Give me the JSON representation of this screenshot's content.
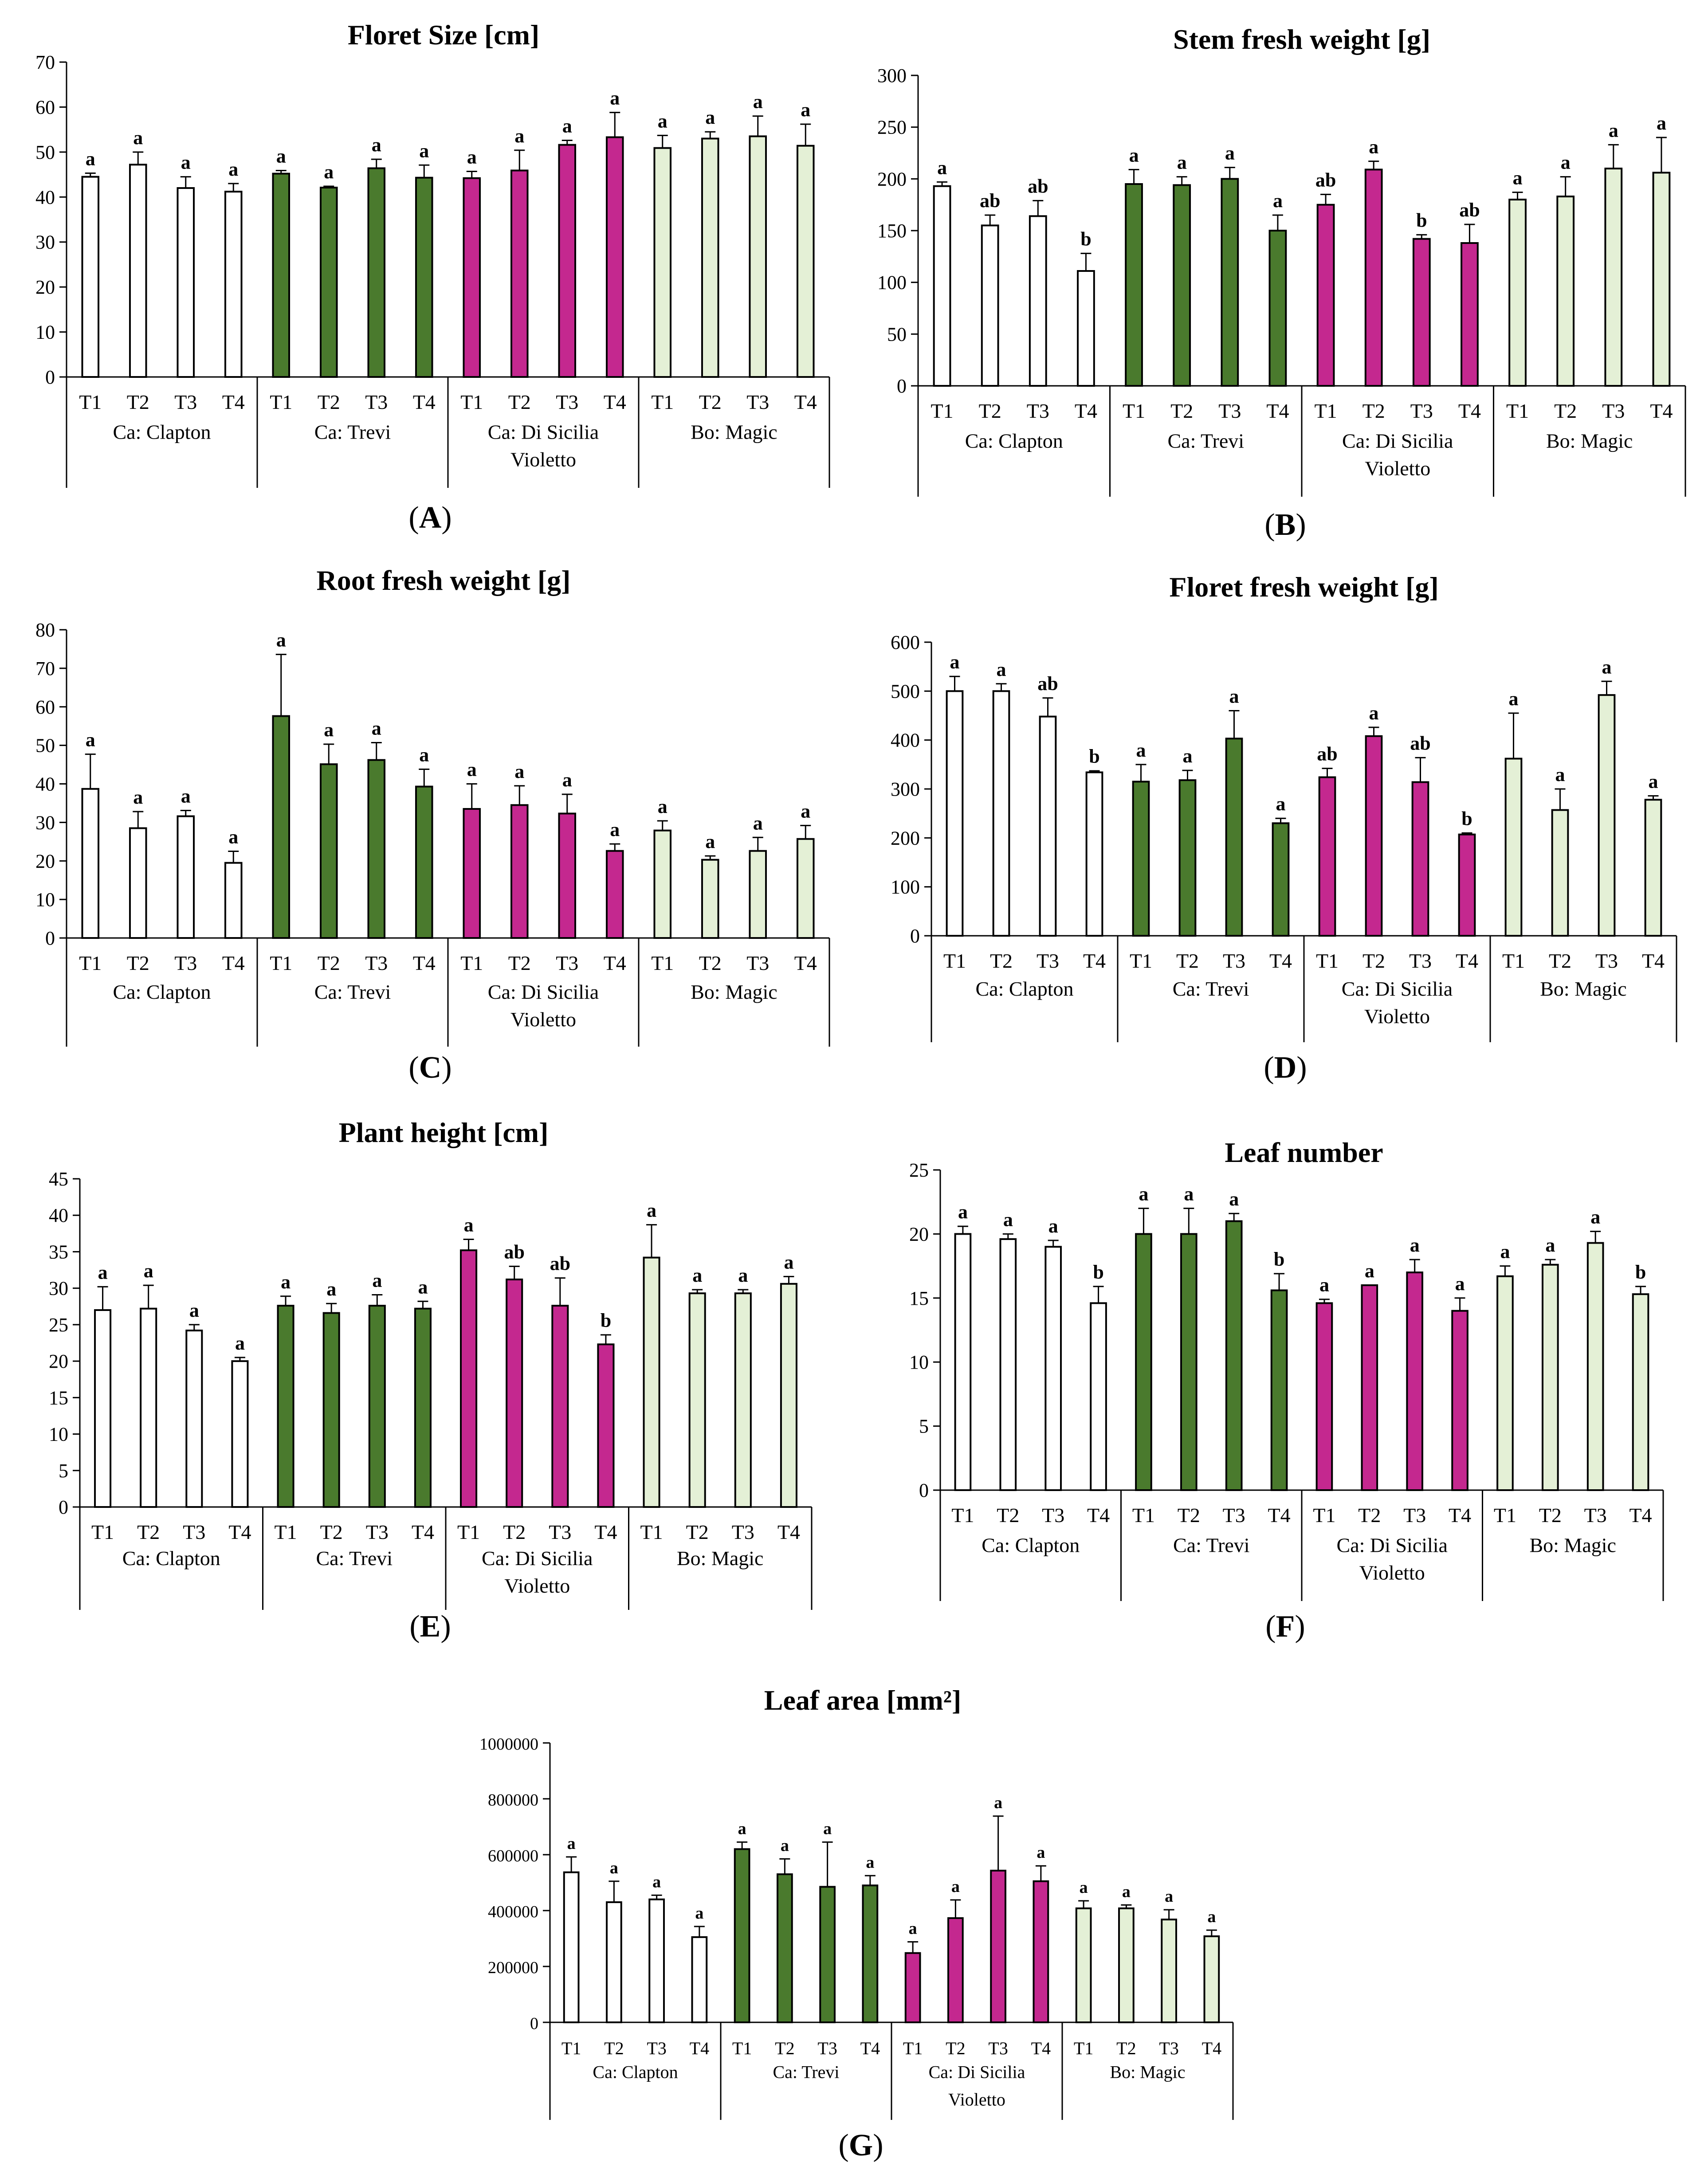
{
  "colors": {
    "Ca: Clapton": "#ffffff",
    "Ca: Trevi": "#4a7a2d",
    "Ca: Di Sicilia Violetto": "#c4288f",
    "Bo: Magic": "#e4f0d6"
  },
  "chart_data": [
    {
      "type": "bar",
      "panel": "A",
      "title": "Floret Size [cm]",
      "ylim": [
        0,
        70
      ],
      "yticks": [
        "0",
        "10",
        "20",
        "30",
        "40",
        "50",
        "60",
        "70"
      ],
      "treatments": [
        "T1",
        "T2",
        "T3",
        "T4"
      ],
      "groups": [
        {
          "name": "Ca: Clapton",
          "lines": [
            "Ca: Clapton"
          ],
          "values": [
            44.5,
            47.2,
            42.0,
            41.2
          ],
          "errors": [
            0.8,
            2.8,
            2.5,
            1.8
          ],
          "letters": [
            "a",
            "a",
            "a",
            "a"
          ]
        },
        {
          "name": "Ca: Trevi",
          "lines": [
            "Ca: Trevi"
          ],
          "values": [
            45.2,
            42.1,
            46.4,
            44.3
          ],
          "errors": [
            0.7,
            0.3,
            2.0,
            2.8
          ],
          "letters": [
            "a",
            "a",
            "a",
            "a"
          ]
        },
        {
          "name": "Ca: Di Sicilia Violetto",
          "lines": [
            "Ca: Di Sicilia",
            "Violetto"
          ],
          "values": [
            44.2,
            45.9,
            51.6,
            53.3
          ],
          "errors": [
            1.5,
            4.5,
            1.0,
            5.5
          ],
          "letters": [
            "a",
            "a",
            "a",
            "a"
          ]
        },
        {
          "name": "Bo: Magic",
          "lines": [
            "Bo: Magic"
          ],
          "values": [
            50.9,
            53.0,
            53.5,
            51.4
          ],
          "errors": [
            2.8,
            1.5,
            4.5,
            4.8
          ],
          "letters": [
            "a",
            "a",
            "a",
            "a"
          ]
        }
      ]
    },
    {
      "type": "bar",
      "panel": "B",
      "title": "Stem fresh weight [g]",
      "ylim": [
        0,
        300
      ],
      "yticks": [
        "0",
        "50",
        "100",
        "150",
        "200",
        "250",
        "300"
      ],
      "treatments": [
        "T1",
        "T2",
        "T3",
        "T4"
      ],
      "groups": [
        {
          "name": "Ca: Clapton",
          "lines": [
            "Ca: Clapton"
          ],
          "values": [
            193,
            155,
            164,
            111
          ],
          "errors": [
            4,
            10,
            15,
            17
          ],
          "letters": [
            "a",
            "ab",
            "ab",
            "b"
          ]
        },
        {
          "name": "Ca: Trevi",
          "lines": [
            "Ca: Trevi"
          ],
          "values": [
            195,
            194,
            200,
            150
          ],
          "errors": [
            14,
            8,
            11,
            15
          ],
          "letters": [
            "a",
            "a",
            "a",
            "a"
          ]
        },
        {
          "name": "Ca: Di Sicilia Violetto",
          "lines": [
            "Ca: Di Sicilia",
            "Violetto"
          ],
          "values": [
            175,
            209,
            142,
            138
          ],
          "errors": [
            10,
            8,
            4,
            18
          ],
          "letters": [
            "ab",
            "a",
            "b",
            "ab"
          ]
        },
        {
          "name": "Bo: Magic",
          "lines": [
            "Bo: Magic"
          ],
          "values": [
            180,
            183,
            210,
            206
          ],
          "errors": [
            7,
            19,
            23,
            34
          ],
          "letters": [
            "a",
            "a",
            "a",
            "a"
          ]
        }
      ]
    },
    {
      "type": "bar",
      "panel": "C",
      "title": "Root fresh weight [g]",
      "ylim": [
        0,
        80
      ],
      "yticks": [
        "0",
        "10",
        "20",
        "30",
        "40",
        "50",
        "60",
        "70",
        "80"
      ],
      "treatments": [
        "T1",
        "T2",
        "T3",
        "T4"
      ],
      "groups": [
        {
          "name": "Ca: Clapton",
          "lines": [
            "Ca: Clapton"
          ],
          "values": [
            38.7,
            28.5,
            31.6,
            19.5
          ],
          "errors": [
            9.0,
            4.3,
            1.5,
            3.0
          ],
          "letters": [
            "a",
            "a",
            "a",
            "a"
          ]
        },
        {
          "name": "Ca: Trevi",
          "lines": [
            "Ca: Trevi"
          ],
          "values": [
            57.6,
            45.1,
            46.2,
            39.3
          ],
          "errors": [
            16.0,
            5.2,
            4.5,
            4.5
          ],
          "letters": [
            "a",
            "a",
            "a",
            "a"
          ]
        },
        {
          "name": "Ca: Di Sicilia Violetto",
          "lines": [
            "Ca: Di Sicilia",
            "Violetto"
          ],
          "values": [
            33.5,
            34.5,
            32.3,
            22.6
          ],
          "errors": [
            6.5,
            5.0,
            5.0,
            1.8
          ],
          "letters": [
            "a",
            "a",
            "a",
            "a"
          ]
        },
        {
          "name": "Bo: Magic",
          "lines": [
            "Bo: Magic"
          ],
          "values": [
            27.9,
            20.3,
            22.6,
            25.7
          ],
          "errors": [
            2.5,
            1.0,
            3.5,
            3.5
          ],
          "letters": [
            "a",
            "a",
            "a",
            "a"
          ]
        }
      ]
    },
    {
      "type": "bar",
      "panel": "D",
      "title": "Floret fresh weight [g]",
      "ylim": [
        0,
        600
      ],
      "yticks": [
        "0",
        "100",
        "200",
        "300",
        "400",
        "500",
        "600"
      ],
      "treatments": [
        "T1",
        "T2",
        "T3",
        "T4"
      ],
      "groups": [
        {
          "name": "Ca: Clapton",
          "lines": [
            "Ca: Clapton"
          ],
          "values": [
            500,
            500,
            448,
            334
          ],
          "errors": [
            30,
            15,
            38,
            3
          ],
          "letters": [
            "a",
            "a",
            "ab",
            "b"
          ]
        },
        {
          "name": "Ca: Trevi",
          "lines": [
            "Ca: Trevi"
          ],
          "values": [
            315,
            318,
            403,
            230
          ],
          "errors": [
            35,
            20,
            57,
            10
          ],
          "letters": [
            "a",
            "a",
            "a",
            "a"
          ]
        },
        {
          "name": "Ca: Di Sicilia Violetto",
          "lines": [
            "Ca: Di Sicilia",
            "Violetto"
          ],
          "values": [
            324,
            408,
            314,
            207
          ],
          "errors": [
            18,
            18,
            50,
            3
          ],
          "letters": [
            "ab",
            "a",
            "ab",
            "b"
          ]
        },
        {
          "name": "Bo: Magic",
          "lines": [
            "Bo: Magic"
          ],
          "values": [
            362,
            257,
            492,
            278
          ],
          "errors": [
            93,
            43,
            28,
            8
          ],
          "letters": [
            "a",
            "a",
            "a",
            "a"
          ]
        }
      ]
    },
    {
      "type": "bar",
      "panel": "E",
      "title": "Plant height [cm]",
      "ylim": [
        0,
        45
      ],
      "yticks": [
        "0",
        "5",
        "10",
        "15",
        "20",
        "25",
        "30",
        "35",
        "40",
        "45"
      ],
      "treatments": [
        "T1",
        "T2",
        "T3",
        "T4"
      ],
      "groups": [
        {
          "name": "Ca: Clapton",
          "lines": [
            "Ca: Clapton"
          ],
          "values": [
            27.0,
            27.2,
            24.2,
            20.0
          ],
          "errors": [
            3.2,
            3.2,
            0.8,
            0.5
          ],
          "letters": [
            "a",
            "a",
            "a",
            "a"
          ]
        },
        {
          "name": "Ca: Trevi",
          "lines": [
            "Ca: Trevi"
          ],
          "values": [
            27.6,
            26.6,
            27.6,
            27.2
          ],
          "errors": [
            1.3,
            1.3,
            1.5,
            1.0
          ],
          "letters": [
            "a",
            "a",
            "a",
            "a"
          ]
        },
        {
          "name": "Ca: Di Sicilia Violetto",
          "lines": [
            "Ca: Di Sicilia",
            "Violetto"
          ],
          "values": [
            35.2,
            31.2,
            27.6,
            22.3
          ],
          "errors": [
            1.5,
            1.8,
            3.8,
            1.3
          ],
          "letters": [
            "a",
            "ab",
            "ab",
            "b"
          ]
        },
        {
          "name": "Bo: Magic",
          "lines": [
            "Bo: Magic"
          ],
          "values": [
            34.2,
            29.3,
            29.3,
            30.6
          ],
          "errors": [
            4.5,
            0.5,
            0.5,
            1.0
          ],
          "letters": [
            "a",
            "a",
            "a",
            "a"
          ]
        }
      ]
    },
    {
      "type": "bar",
      "panel": "F",
      "title": "Leaf number",
      "ylim": [
        0,
        25
      ],
      "yticks": [
        "0",
        "5",
        "10",
        "15",
        "20",
        "25"
      ],
      "treatments": [
        "T1",
        "T2",
        "T3",
        "T4"
      ],
      "groups": [
        {
          "name": "Ca: Clapton",
          "lines": [
            "Ca: Clapton"
          ],
          "values": [
            20.0,
            19.6,
            19.0,
            14.6
          ],
          "errors": [
            0.6,
            0.4,
            0.5,
            1.3
          ],
          "letters": [
            "a",
            "a",
            "a",
            "b"
          ]
        },
        {
          "name": "Ca: Trevi",
          "lines": [
            "Ca: Trevi"
          ],
          "values": [
            20.0,
            20.0,
            21.0,
            15.6
          ],
          "errors": [
            2.0,
            2.0,
            0.6,
            1.3
          ],
          "letters": [
            "a",
            "a",
            "a",
            "b"
          ]
        },
        {
          "name": "Ca: Di Sicilia Violetto",
          "lines": [
            "Ca: Di Sicilia",
            "Violetto"
          ],
          "values": [
            14.6,
            16.0,
            17.0,
            14.0
          ],
          "errors": [
            0.3,
            0.0,
            1.0,
            1.0
          ],
          "letters": [
            "a",
            "a",
            "a",
            "a"
          ]
        },
        {
          "name": "Bo: Magic",
          "lines": [
            "Bo: Magic"
          ],
          "values": [
            16.7,
            17.6,
            19.3,
            15.3
          ],
          "errors": [
            0.8,
            0.4,
            0.9,
            0.6
          ],
          "letters": [
            "a",
            "a",
            "a",
            "b"
          ]
        }
      ]
    },
    {
      "type": "bar",
      "panel": "G",
      "title": "Leaf area [mm²]",
      "ylim": [
        0,
        1000000
      ],
      "yticks": [
        "0",
        "200000",
        "400000",
        "600000",
        "800000",
        "1000000"
      ],
      "treatments": [
        "T1",
        "T2",
        "T3",
        "T4"
      ],
      "groups": [
        {
          "name": "Ca: Clapton",
          "lines": [
            "Ca: Clapton"
          ],
          "values": [
            537000,
            430000,
            440000,
            305000
          ],
          "errors": [
            55000,
            75000,
            15000,
            38000
          ],
          "letters": [
            "a",
            "a",
            "a",
            "a"
          ]
        },
        {
          "name": "Ca: Trevi",
          "lines": [
            "Ca: Trevi"
          ],
          "values": [
            620000,
            530000,
            485000,
            490000
          ],
          "errors": [
            25000,
            55000,
            160000,
            35000
          ],
          "letters": [
            "a",
            "a",
            "a",
            "a"
          ]
        },
        {
          "name": "Ca: Di Sicilia Violetto",
          "lines": [
            "Ca: Di Sicilia",
            "Violetto"
          ],
          "values": [
            248000,
            373000,
            543000,
            505000
          ],
          "errors": [
            40000,
            65000,
            195000,
            55000
          ],
          "letters": [
            "a",
            "a",
            "a",
            "a"
          ]
        },
        {
          "name": "Bo: Magic",
          "lines": [
            "Bo: Magic"
          ],
          "values": [
            408000,
            408000,
            368000,
            308000
          ],
          "errors": [
            27000,
            12000,
            35000,
            22000
          ],
          "letters": [
            "a",
            "a",
            "a",
            "a"
          ]
        }
      ]
    }
  ]
}
